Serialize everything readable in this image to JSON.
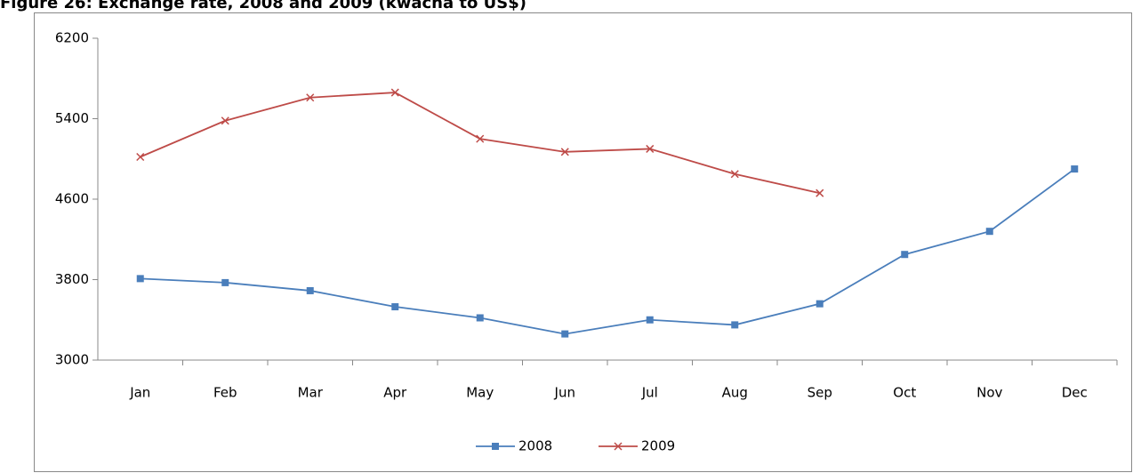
{
  "chart_data": {
    "type": "line",
    "title": "Figure 26: Exchange rate, 2008 and 2009 (kwacha to US$)",
    "categories": [
      "Jan",
      "Feb",
      "Mar",
      "Apr",
      "May",
      "Jun",
      "Jul",
      "Aug",
      "Sep",
      "Oct",
      "Nov",
      "Dec"
    ],
    "series": [
      {
        "name": "2008",
        "color": "#4a7ebb",
        "marker": "square",
        "values": [
          3810,
          3770,
          3690,
          3530,
          3420,
          3260,
          3400,
          3350,
          3560,
          4050,
          4280,
          4900
        ]
      },
      {
        "name": "2009",
        "color": "#be4b48",
        "marker": "x",
        "values": [
          5020,
          5380,
          5610,
          5660,
          5200,
          5070,
          5100,
          4850,
          4660,
          null,
          null,
          null
        ]
      }
    ],
    "ylim": [
      3000,
      6200
    ],
    "yticks": [
      3000,
      3800,
      4600,
      5400,
      6200
    ],
    "grid": false,
    "legend": "bottom"
  }
}
